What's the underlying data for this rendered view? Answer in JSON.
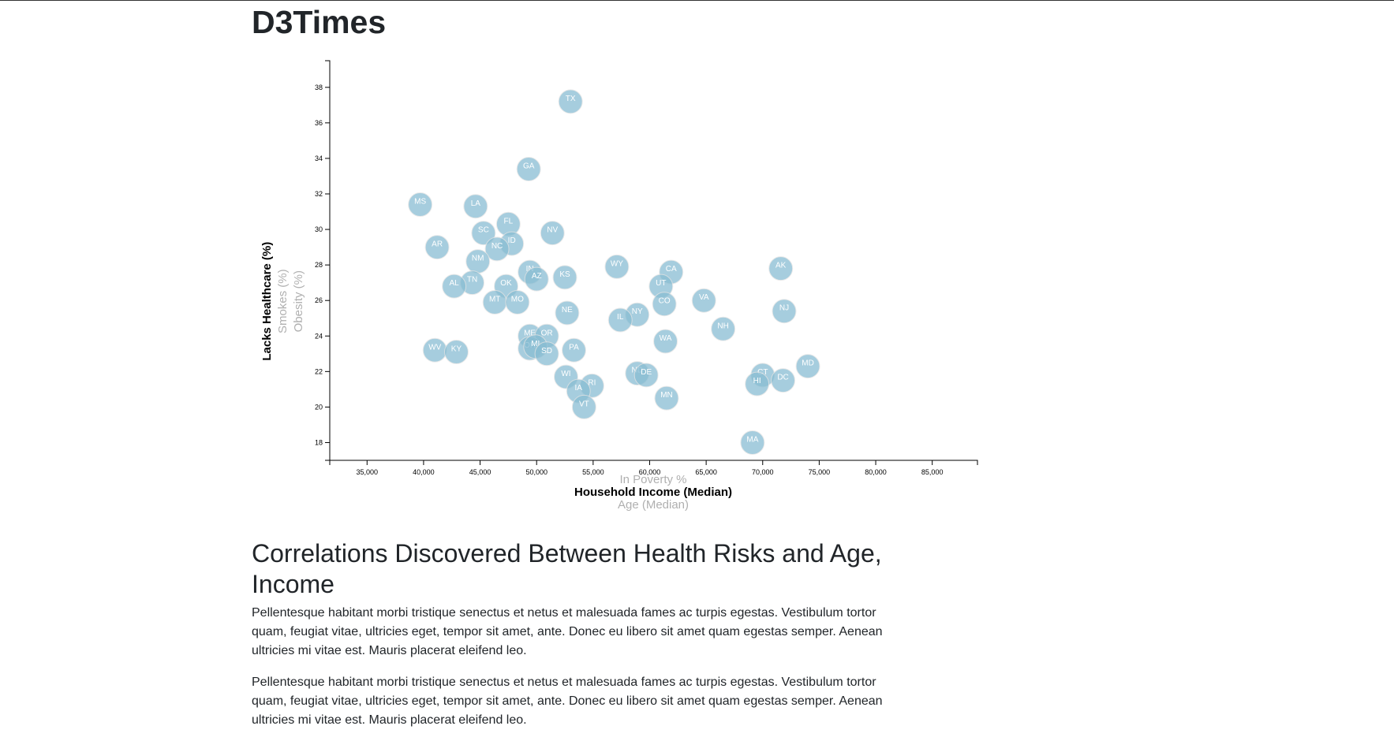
{
  "header": {
    "title": "D3Times"
  },
  "article": {
    "heading": "Correlations Discovered Between Health Risks and Age, Income",
    "paragraphs": [
      "Pellentesque habitant morbi tristique senectus et netus et malesuada fames ac turpis egestas. Vestibulum tortor quam, feugiat vitae, ultricies eget, tempor sit amet, ante. Donec eu libero sit amet quam egestas semper. Aenean ultricies mi vitae est. Mauris placerat eleifend leo.",
      "Pellentesque habitant morbi tristique senectus et netus et malesuada fames ac turpis egestas. Vestibulum tortor quam, feugiat vitae, ultricies eget, tempor sit amet, ante. Donec eu libero sit amet quam egestas semper. Aenean ultricies mi vitae est. Mauris placerat eleifend leo."
    ]
  },
  "chart_data": {
    "type": "scatter",
    "colors": {
      "marker": "#89bdd3",
      "marker_text": "#ffffff"
    },
    "xlim": [
      31700,
      89000
    ],
    "ylim": [
      17,
      39.5
    ],
    "xticks": [
      35000,
      40000,
      45000,
      50000,
      55000,
      60000,
      65000,
      70000,
      75000,
      80000,
      85000
    ],
    "yticks": [
      18,
      20,
      22,
      24,
      26,
      28,
      30,
      32,
      34,
      36,
      38
    ],
    "x_axis_options": [
      {
        "label": "In Poverty %",
        "active": false
      },
      {
        "label": "Household Income (Median)",
        "active": true
      },
      {
        "label": "Age (Median)",
        "active": false
      }
    ],
    "y_axis_options": [
      {
        "label": "Lacks Healthcare (%)",
        "active": true
      },
      {
        "label": "Smokes (%)",
        "active": false
      },
      {
        "label": "Obesity (%)",
        "active": false
      }
    ],
    "points": [
      {
        "abbr": "TX",
        "x": 53000,
        "y": 37.2
      },
      {
        "abbr": "GA",
        "x": 49300,
        "y": 33.4
      },
      {
        "abbr": "MS",
        "x": 39700,
        "y": 31.4
      },
      {
        "abbr": "LA",
        "x": 44600,
        "y": 31.3
      },
      {
        "abbr": "FL",
        "x": 47500,
        "y": 30.3
      },
      {
        "abbr": "SC",
        "x": 45300,
        "y": 29.8
      },
      {
        "abbr": "NV",
        "x": 51400,
        "y": 29.8
      },
      {
        "abbr": "ID",
        "x": 47800,
        "y": 29.2
      },
      {
        "abbr": "AR",
        "x": 41200,
        "y": 29.0
      },
      {
        "abbr": "NC",
        "x": 46500,
        "y": 28.9
      },
      {
        "abbr": "NM",
        "x": 44800,
        "y": 28.2
      },
      {
        "abbr": "WY",
        "x": 57100,
        "y": 27.9
      },
      {
        "abbr": "AK",
        "x": 71600,
        "y": 27.8
      },
      {
        "abbr": "IN",
        "x": 49400,
        "y": 27.6
      },
      {
        "abbr": "CA",
        "x": 61900,
        "y": 27.6
      },
      {
        "abbr": "AZ",
        "x": 50000,
        "y": 27.2
      },
      {
        "abbr": "KS",
        "x": 52500,
        "y": 27.3
      },
      {
        "abbr": "TN",
        "x": 44300,
        "y": 27.0
      },
      {
        "abbr": "AL",
        "x": 42700,
        "y": 26.8
      },
      {
        "abbr": "OK",
        "x": 47300,
        "y": 26.8
      },
      {
        "abbr": "UT",
        "x": 61000,
        "y": 26.8
      },
      {
        "abbr": "VA",
        "x": 64800,
        "y": 26.0
      },
      {
        "abbr": "MT",
        "x": 46300,
        "y": 25.9
      },
      {
        "abbr": "MO",
        "x": 48300,
        "y": 25.9
      },
      {
        "abbr": "CO",
        "x": 61300,
        "y": 25.8
      },
      {
        "abbr": "NJ",
        "x": 71900,
        "y": 25.4
      },
      {
        "abbr": "NE",
        "x": 52700,
        "y": 25.3
      },
      {
        "abbr": "NY",
        "x": 58900,
        "y": 25.2
      },
      {
        "abbr": "IL",
        "x": 57400,
        "y": 24.9
      },
      {
        "abbr": "NH",
        "x": 66500,
        "y": 24.4
      },
      {
        "abbr": "ME",
        "x": 49400,
        "y": 24.0
      },
      {
        "abbr": "OR",
        "x": 50900,
        "y": 24.0
      },
      {
        "abbr": "WA",
        "x": 61400,
        "y": 23.7
      },
      {
        "abbr": "OH",
        "x": 49400,
        "y": 23.3
      },
      {
        "abbr": "MI",
        "x": 49900,
        "y": 23.4
      },
      {
        "abbr": "PA",
        "x": 53300,
        "y": 23.2
      },
      {
        "abbr": "WV",
        "x": 41000,
        "y": 23.2
      },
      {
        "abbr": "KY",
        "x": 42900,
        "y": 23.1
      },
      {
        "abbr": "SD",
        "x": 50900,
        "y": 23.0
      },
      {
        "abbr": "MD",
        "x": 74000,
        "y": 22.3
      },
      {
        "abbr": "ND",
        "x": 58900,
        "y": 21.9
      },
      {
        "abbr": "DE",
        "x": 59700,
        "y": 21.8
      },
      {
        "abbr": "CT",
        "x": 70000,
        "y": 21.8
      },
      {
        "abbr": "WI",
        "x": 52600,
        "y": 21.7
      },
      {
        "abbr": "DC",
        "x": 71800,
        "y": 21.5
      },
      {
        "abbr": "HI",
        "x": 69500,
        "y": 21.3
      },
      {
        "abbr": "RI",
        "x": 54900,
        "y": 21.2
      },
      {
        "abbr": "IA",
        "x": 53700,
        "y": 20.9
      },
      {
        "abbr": "MN",
        "x": 61500,
        "y": 20.5
      },
      {
        "abbr": "VT",
        "x": 54200,
        "y": 20.0
      },
      {
        "abbr": "MA",
        "x": 69100,
        "y": 18.0
      }
    ]
  }
}
